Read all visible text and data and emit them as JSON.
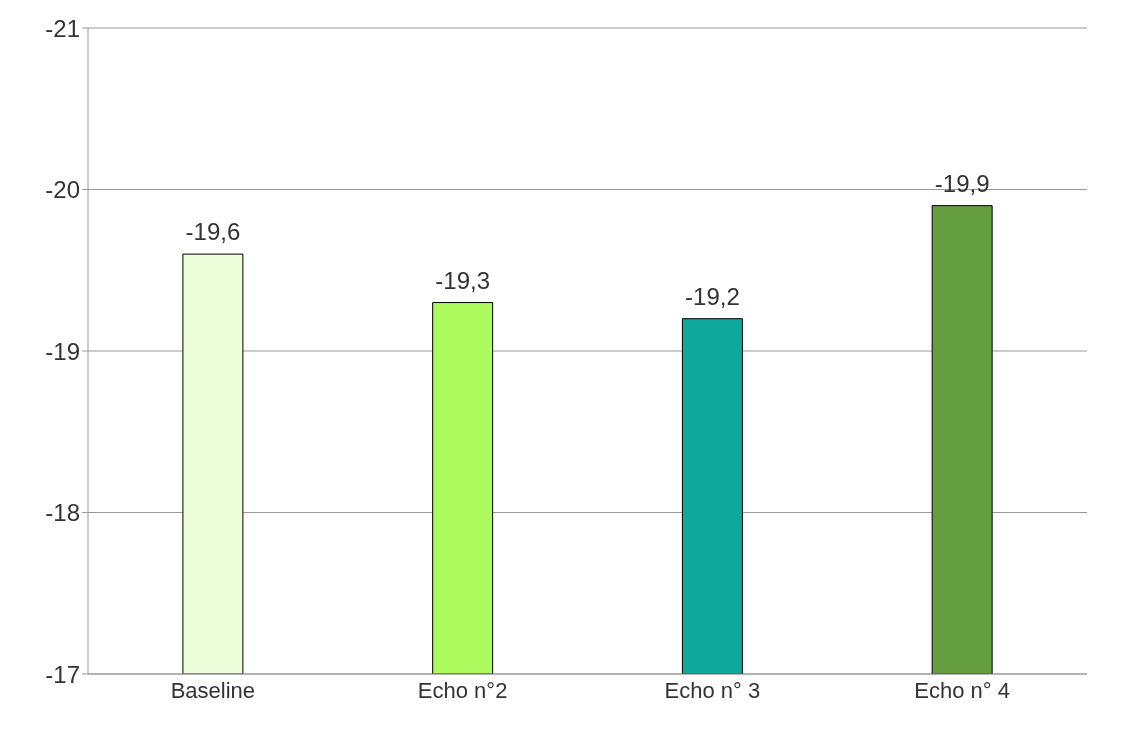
{
  "chart_data": {
    "type": "bar",
    "categories": [
      "Baseline",
      "Echo n°2",
      "Echo n° 3",
      "Echo n° 4"
    ],
    "values": [
      -19.6,
      -19.3,
      -19.2,
      -19.9
    ],
    "colors": [
      "#ebfdd9",
      "#adfa5f",
      "#0ea89d",
      "#659e3e"
    ],
    "value_labels": [
      "-19,6",
      "-19,3",
      "-19,2",
      "-19,9"
    ],
    "ylim": [
      -17,
      -21
    ],
    "yticks": [
      -17,
      -18,
      -19,
      -20,
      -21
    ],
    "grid": "y"
  }
}
